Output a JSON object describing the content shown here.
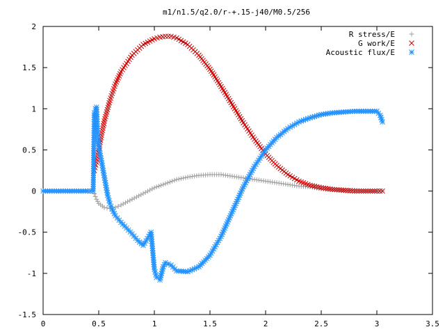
{
  "chart_data": {
    "type": "scatter",
    "title": "m1/n1.5/q2.0/r-+.15-j40/M0.5/256",
    "xlabel": "",
    "ylabel": "",
    "xlim": [
      0,
      3.5
    ],
    "ylim": [
      -1.5,
      2
    ],
    "xticks": [
      "0",
      "0.5",
      "1",
      "1.5",
      "2",
      "2.5",
      "3",
      "3.5"
    ],
    "yticks": [
      "-1.5",
      "-1",
      "-0.5",
      "0",
      "0.5",
      "1",
      "1.5",
      "2"
    ],
    "grid": false,
    "legend_position": "top-right",
    "series": [
      {
        "name": "R stress/E",
        "color": "#a0a0a0",
        "marker": "plus",
        "x": [
          0.0,
          0.1,
          0.2,
          0.3,
          0.4,
          0.45,
          0.48,
          0.5,
          0.55,
          0.6,
          0.65,
          0.7,
          0.8,
          0.9,
          1.0,
          1.1,
          1.2,
          1.3,
          1.4,
          1.5,
          1.6,
          1.7,
          1.8,
          1.9,
          2.0,
          2.1,
          2.2,
          2.3,
          2.4,
          2.5,
          2.6,
          2.7,
          2.8,
          2.9,
          3.0,
          3.05
        ],
        "y": [
          0.0,
          0.0,
          0.0,
          0.0,
          0.0,
          0.0,
          -0.1,
          -0.15,
          -0.2,
          -0.21,
          -0.2,
          -0.17,
          -0.1,
          -0.03,
          0.04,
          0.09,
          0.14,
          0.17,
          0.19,
          0.2,
          0.2,
          0.18,
          0.16,
          0.14,
          0.12,
          0.1,
          0.08,
          0.06,
          0.05,
          0.03,
          0.02,
          0.01,
          0.01,
          0.0,
          0.0,
          0.0
        ]
      },
      {
        "name": "G work/E",
        "color": "#cc0000",
        "marker": "cross",
        "x": [
          0.46,
          0.48,
          0.5,
          0.52,
          0.55,
          0.6,
          0.65,
          0.7,
          0.8,
          0.9,
          1.0,
          1.05,
          1.1,
          1.15,
          1.2,
          1.3,
          1.4,
          1.5,
          1.6,
          1.7,
          1.8,
          1.9,
          2.0,
          2.1,
          2.2,
          2.3,
          2.4,
          2.5,
          2.6,
          2.7,
          2.8,
          2.9,
          3.0,
          3.05
        ],
        "y": [
          0.25,
          0.35,
          0.5,
          0.65,
          0.85,
          1.1,
          1.3,
          1.45,
          1.65,
          1.78,
          1.85,
          1.87,
          1.88,
          1.88,
          1.86,
          1.78,
          1.65,
          1.48,
          1.27,
          1.05,
          0.83,
          0.63,
          0.45,
          0.31,
          0.2,
          0.12,
          0.07,
          0.04,
          0.02,
          0.01,
          0.0,
          0.0,
          0.0,
          0.0
        ]
      },
      {
        "name": "Acoustic flux/E",
        "color": "#1e90ff",
        "marker": "star",
        "x": [
          0.0,
          0.1,
          0.2,
          0.3,
          0.4,
          0.45,
          0.46,
          0.47,
          0.48,
          0.49,
          0.5,
          0.52,
          0.54,
          0.56,
          0.58,
          0.6,
          0.62,
          0.65,
          0.7,
          0.75,
          0.8,
          0.85,
          0.9,
          0.95,
          0.97,
          1.0,
          1.02,
          1.05,
          1.08,
          1.1,
          1.15,
          1.2,
          1.3,
          1.4,
          1.5,
          1.6,
          1.7,
          1.8,
          1.9,
          2.0,
          2.1,
          2.2,
          2.3,
          2.4,
          2.5,
          2.6,
          2.7,
          2.8,
          2.9,
          3.0,
          3.03,
          3.05
        ],
        "y": [
          0.0,
          0.0,
          0.0,
          0.0,
          0.0,
          0.0,
          0.95,
          1.0,
          1.02,
          0.7,
          0.55,
          0.4,
          0.25,
          0.1,
          -0.05,
          -0.15,
          -0.22,
          -0.3,
          -0.38,
          -0.45,
          -0.52,
          -0.6,
          -0.66,
          -0.55,
          -0.5,
          -0.95,
          -1.05,
          -1.08,
          -0.92,
          -0.87,
          -0.9,
          -0.97,
          -0.98,
          -0.92,
          -0.78,
          -0.55,
          -0.25,
          0.05,
          0.3,
          0.5,
          0.65,
          0.76,
          0.84,
          0.89,
          0.93,
          0.95,
          0.96,
          0.97,
          0.97,
          0.97,
          0.92,
          0.84
        ]
      }
    ]
  }
}
